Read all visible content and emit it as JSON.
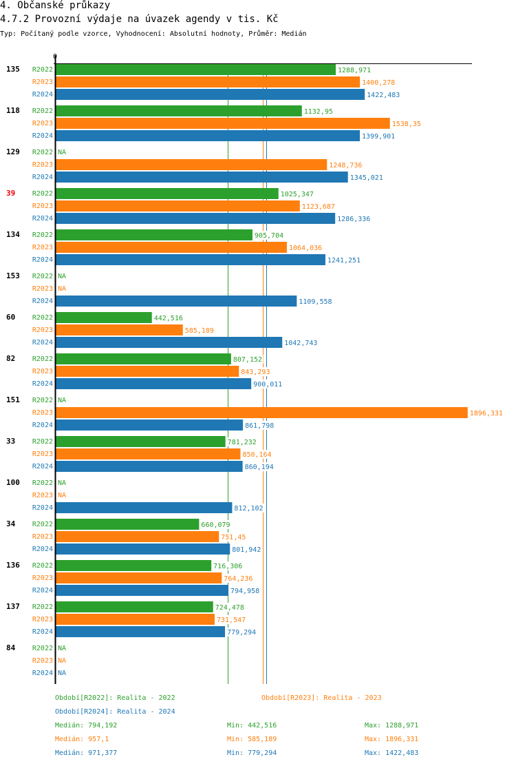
{
  "header": {
    "section": "4. Občanské průkazy",
    "title": "4.7.2 Provozní výdaje na úvazek agendy v tis. Kč",
    "subtitle": "Typ: Počítaný podle vzorce, Vyhodnocení: Absolutní hodnoty, Průměr: Medián"
  },
  "colors": {
    "R2022": "#2ca02c",
    "R2023": "#ff7f0e",
    "R2024": "#1f77b4",
    "highlight": "#e8000b",
    "axis": "#000000"
  },
  "chart_data": {
    "type": "bar",
    "orientation": "horizontal",
    "title": "4.7.2 Provozní výdaje na úvazek agendy v tis. Kč",
    "xlabel": "",
    "ylabel": "",
    "x_tick_labels": [
      "0"
    ],
    "xlim": [
      0,
      1900
    ],
    "missing_label": "NA",
    "series_names": [
      "R2022",
      "R2023",
      "R2024"
    ],
    "categories": [
      {
        "label": "135",
        "highlight": false
      },
      {
        "label": "118",
        "highlight": false
      },
      {
        "label": "129",
        "highlight": false
      },
      {
        "label": "39",
        "highlight": true
      },
      {
        "label": "134",
        "highlight": false
      },
      {
        "label": "153",
        "highlight": false
      },
      {
        "label": "60",
        "highlight": false
      },
      {
        "label": "82",
        "highlight": false
      },
      {
        "label": "151",
        "highlight": false
      },
      {
        "label": "33",
        "highlight": false
      },
      {
        "label": "100",
        "highlight": false
      },
      {
        "label": "34",
        "highlight": false
      },
      {
        "label": "136",
        "highlight": false
      },
      {
        "label": "137",
        "highlight": false
      },
      {
        "label": "84",
        "highlight": false
      }
    ],
    "series": [
      {
        "name": "R2022",
        "values": [
          1288.971,
          1132.95,
          null,
          1025.347,
          905.704,
          null,
          442.516,
          807.152,
          null,
          781.232,
          null,
          660.079,
          716.306,
          724.478,
          null
        ],
        "labels": [
          "1288,971",
          "1132,95",
          "NA",
          "1025,347",
          "905,704",
          "NA",
          "442,516",
          "807,152",
          "NA",
          "781,232",
          "NA",
          "660,079",
          "716,306",
          "724,478",
          "NA"
        ]
      },
      {
        "name": "R2023",
        "values": [
          1400.278,
          1538.35,
          1248.736,
          1123.687,
          1064.036,
          null,
          585.189,
          843.293,
          1896.331,
          850.164,
          null,
          751.45,
          764.236,
          731.547,
          null
        ],
        "labels": [
          "1400,278",
          "1538,35",
          "1248,736",
          "1123,687",
          "1064,036",
          "NA",
          "585,189",
          "843,293",
          "1896,331",
          "850,164",
          "NA",
          "751,45",
          "764,236",
          "731,547",
          "NA"
        ]
      },
      {
        "name": "R2024",
        "values": [
          1422.483,
          1399.901,
          1345.021,
          1286.336,
          1241.251,
          1109.558,
          1042.743,
          900.011,
          861.798,
          860.194,
          812.102,
          801.942,
          794.958,
          779.294,
          null
        ],
        "labels": [
          "1422,483",
          "1399,901",
          "1345,021",
          "1286,336",
          "1241,251",
          "1109,558",
          "1042,743",
          "900,011",
          "861,798",
          "860,194",
          "812,102",
          "801,942",
          "794,958",
          "779,294",
          "NA"
        ]
      }
    ],
    "reference_lines": [
      {
        "series": "R2022",
        "type": "median",
        "value": 794.192
      },
      {
        "series": "R2023",
        "type": "median",
        "value": 957.1
      },
      {
        "series": "R2024",
        "type": "median",
        "value": 971.377
      }
    ],
    "legend": {
      "placement": "bottom",
      "periods": [
        {
          "series": "R2022",
          "text": "Období[R2022]: Realita - 2022"
        },
        {
          "series": "R2023",
          "text": "Období[R2023]: Realita - 2023"
        },
        {
          "series": "R2024",
          "text": "Období[R2024]: Realita - 2024"
        }
      ],
      "stats": [
        {
          "series": "R2022",
          "median": "Medián: 794,192",
          "min": "Min: 442,516",
          "max": "Max: 1288,971"
        },
        {
          "series": "R2023",
          "median": "Medián: 957,1",
          "min": "Min: 585,189",
          "max": "Max: 1896,331"
        },
        {
          "series": "R2024",
          "median": "Medián: 971,377",
          "min": "Min: 779,294",
          "max": "Max: 1422,483"
        }
      ]
    }
  }
}
